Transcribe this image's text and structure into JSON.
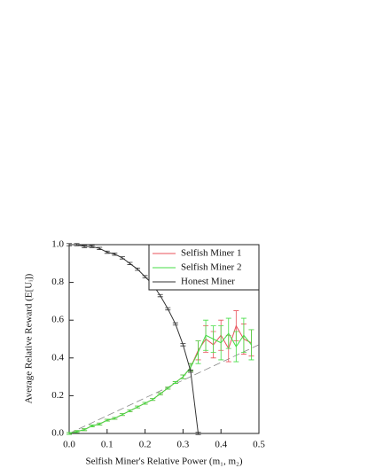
{
  "chart_data": {
    "type": "line",
    "xlabel": "Selfish Miner's Relative Power (m₁, m₂)",
    "ylabel": "Average Relative Reward (E[Uᵢ])",
    "xlim": [
      0,
      0.5
    ],
    "ylim": [
      0,
      1
    ],
    "xticks": [
      {
        "value": 0,
        "label": "0.0"
      },
      0.1,
      0.2,
      0.3,
      0.4,
      0.5
    ],
    "yticks": [
      {
        "value": 0,
        "label": "0.0"
      },
      0.2,
      0.4,
      0.6,
      0.8,
      {
        "value": 1,
        "label": "1.0"
      }
    ],
    "legend": "top-right",
    "series": [
      {
        "name": "Selfish Miner 1",
        "color": "#e8505a",
        "x": [
          0,
          0.02,
          0.04,
          0.06,
          0.08,
          0.1,
          0.12,
          0.14,
          0.16,
          0.18,
          0.2,
          0.22,
          0.24,
          0.26,
          0.28,
          0.3,
          0.32,
          0.34,
          0.36,
          0.38,
          0.4,
          0.42,
          0.44,
          0.46,
          0.48
        ],
        "values": [
          0,
          0.01,
          0.02,
          0.04,
          0.05,
          0.07,
          0.08,
          0.1,
          0.12,
          0.14,
          0.16,
          0.18,
          0.21,
          0.24,
          0.27,
          0.3,
          0.35,
          0.44,
          0.5,
          0.47,
          0.52,
          0.45,
          0.57,
          0.5,
          0.48
        ],
        "errors": [
          0.005,
          0.005,
          0.005,
          0.005,
          0.005,
          0.005,
          0.005,
          0.005,
          0.005,
          0.005,
          0.005,
          0.005,
          0.005,
          0.005,
          0.005,
          0.01,
          0.02,
          0.05,
          0.07,
          0.07,
          0.08,
          0.07,
          0.08,
          0.08,
          0.07
        ]
      },
      {
        "name": "Selfish Miner 2",
        "color": "#44dd44",
        "x": [
          0,
          0.02,
          0.04,
          0.06,
          0.08,
          0.1,
          0.12,
          0.14,
          0.16,
          0.18,
          0.2,
          0.22,
          0.24,
          0.26,
          0.28,
          0.3,
          0.32,
          0.34,
          0.36,
          0.38,
          0.4,
          0.42,
          0.44,
          0.46,
          0.48
        ],
        "values": [
          0,
          0.01,
          0.02,
          0.04,
          0.05,
          0.07,
          0.08,
          0.1,
          0.12,
          0.14,
          0.16,
          0.18,
          0.21,
          0.24,
          0.27,
          0.3,
          0.35,
          0.43,
          0.52,
          0.5,
          0.48,
          0.53,
          0.46,
          0.52,
          0.47
        ],
        "errors": [
          0.005,
          0.005,
          0.005,
          0.005,
          0.005,
          0.005,
          0.005,
          0.005,
          0.005,
          0.005,
          0.005,
          0.005,
          0.005,
          0.005,
          0.005,
          0.01,
          0.02,
          0.06,
          0.08,
          0.07,
          0.09,
          0.08,
          0.08,
          0.09,
          0.08
        ]
      },
      {
        "name": "Honest Miner",
        "color": "#333333",
        "x": [
          0,
          0.02,
          0.04,
          0.06,
          0.08,
          0.1,
          0.12,
          0.14,
          0.16,
          0.18,
          0.2,
          0.22,
          0.24,
          0.26,
          0.28,
          0.3,
          0.32,
          0.34
        ],
        "values": [
          1,
          1,
          0.99,
          0.99,
          0.98,
          0.96,
          0.95,
          0.93,
          0.9,
          0.87,
          0.83,
          0.79,
          0.73,
          0.66,
          0.58,
          0.47,
          0.33,
          0
        ],
        "errors": [
          0.006,
          0.006,
          0.006,
          0.006,
          0.006,
          0.006,
          0.006,
          0.006,
          0.006,
          0.006,
          0.006,
          0.006,
          0.006,
          0.006,
          0.006,
          0.006,
          0.006,
          0.006
        ]
      }
    ],
    "reference_line": {
      "x": [
        0,
        0.5
      ],
      "values": [
        0,
        0.47
      ],
      "color": "#888888"
    }
  }
}
